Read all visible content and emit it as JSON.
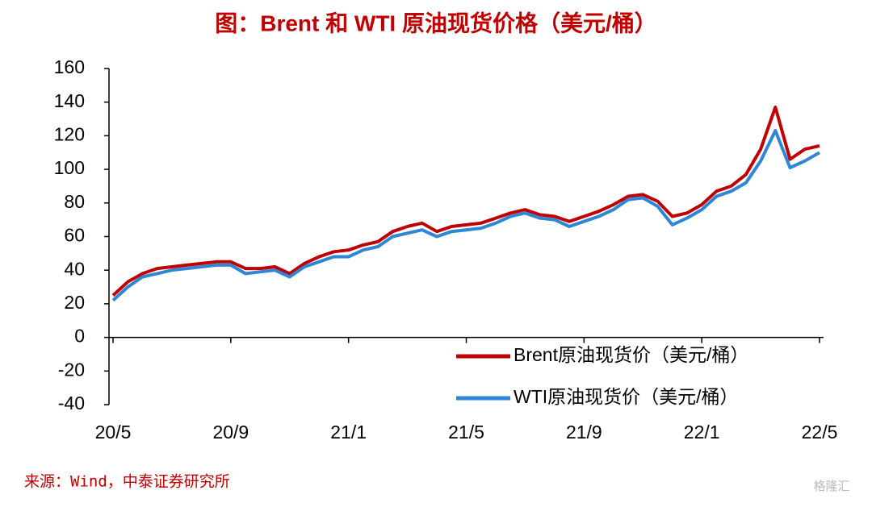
{
  "chart_data": {
    "type": "line",
    "title": "图：Brent 和 WTI 原油现货价格（美元/桶）",
    "source": "来源：Wind，中泰证券研究所",
    "watermark": "格隆汇",
    "categories": [
      "20/5",
      null,
      null,
      null,
      null,
      null,
      null,
      null,
      "20/9",
      null,
      null,
      null,
      null,
      null,
      null,
      null,
      "21/1",
      null,
      null,
      null,
      null,
      null,
      null,
      null,
      "21/5",
      null,
      null,
      null,
      null,
      null,
      null,
      null,
      "21/9",
      null,
      null,
      null,
      null,
      null,
      null,
      null,
      "22/1",
      null,
      null,
      null,
      null,
      null,
      null,
      null,
      "22/5"
    ],
    "series": [
      {
        "name": "Brent原油现货价（美元/桶）",
        "color": "#c00000",
        "values": [
          25,
          33,
          38,
          41,
          42,
          43,
          44,
          45,
          45,
          41,
          41,
          42,
          38,
          44,
          48,
          51,
          52,
          55,
          57,
          63,
          66,
          68,
          63,
          66,
          67,
          68,
          71,
          74,
          76,
          73,
          72,
          69,
          72,
          75,
          79,
          84,
          85,
          81,
          72,
          74,
          79,
          87,
          90,
          97,
          112,
          137,
          106,
          112,
          114
        ]
      },
      {
        "name": "WTI原油现货价（美元/桶）",
        "color": "#2e86d4",
        "values": [
          22,
          30,
          36,
          38,
          40,
          41,
          42,
          43,
          43,
          38,
          39,
          40,
          36,
          42,
          45,
          48,
          48,
          52,
          54,
          60,
          62,
          64,
          60,
          63,
          64,
          65,
          68,
          72,
          74,
          71,
          70,
          66,
          69,
          72,
          76,
          82,
          83,
          78,
          67,
          71,
          76,
          84,
          87,
          92,
          105,
          123,
          101,
          105,
          110
        ]
      }
    ],
    "ylim": [
      -40,
      160
    ],
    "yticks": [
      -40,
      -20,
      0,
      20,
      40,
      60,
      80,
      100,
      120,
      140,
      160
    ]
  }
}
